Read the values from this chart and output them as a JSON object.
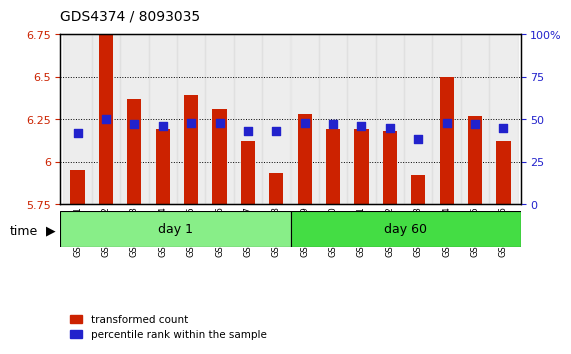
{
  "title": "GDS4374 / 8093035",
  "samples": [
    "GSM586091",
    "GSM586092",
    "GSM586093",
    "GSM586094",
    "GSM586095",
    "GSM586096",
    "GSM586097",
    "GSM586098",
    "GSM586099",
    "GSM586100",
    "GSM586101",
    "GSM586102",
    "GSM586103",
    "GSM586104",
    "GSM586105",
    "GSM586106"
  ],
  "transformed_count": [
    5.95,
    6.75,
    6.37,
    6.19,
    6.39,
    6.31,
    6.12,
    5.93,
    6.28,
    6.19,
    6.19,
    6.18,
    5.92,
    6.5,
    6.27,
    6.12
  ],
  "percentile_rank": [
    42,
    50,
    47,
    46,
    48,
    48,
    43,
    43,
    48,
    47,
    46,
    45,
    38,
    48,
    47,
    45
  ],
  "day1_samples": 8,
  "day60_samples": 8,
  "ylim_left": [
    5.75,
    6.75
  ],
  "ylim_right": [
    0,
    100
  ],
  "yticks_left": [
    5.75,
    6.0,
    6.25,
    6.5,
    6.75
  ],
  "yticks_right": [
    0,
    25,
    50,
    75,
    100
  ],
  "ytick_labels_left": [
    "5.75",
    "6",
    "6.25",
    "6.5",
    "6.75"
  ],
  "ytick_labels_right": [
    "0",
    "25",
    "50",
    "75",
    "100%"
  ],
  "bar_color": "#cc2200",
  "dot_color": "#2222cc",
  "bg_bar_color": "#dddddd",
  "day1_color": "#88ee88",
  "day60_color": "#44dd44",
  "bar_bottom": 5.75,
  "dot_size": 30,
  "bar_width": 0.5,
  "grid_color": "black",
  "legend_red_label": "transformed count",
  "legend_blue_label": "percentile rank within the sample",
  "time_label": "time",
  "day1_label": "day 1",
  "day60_label": "day 60"
}
